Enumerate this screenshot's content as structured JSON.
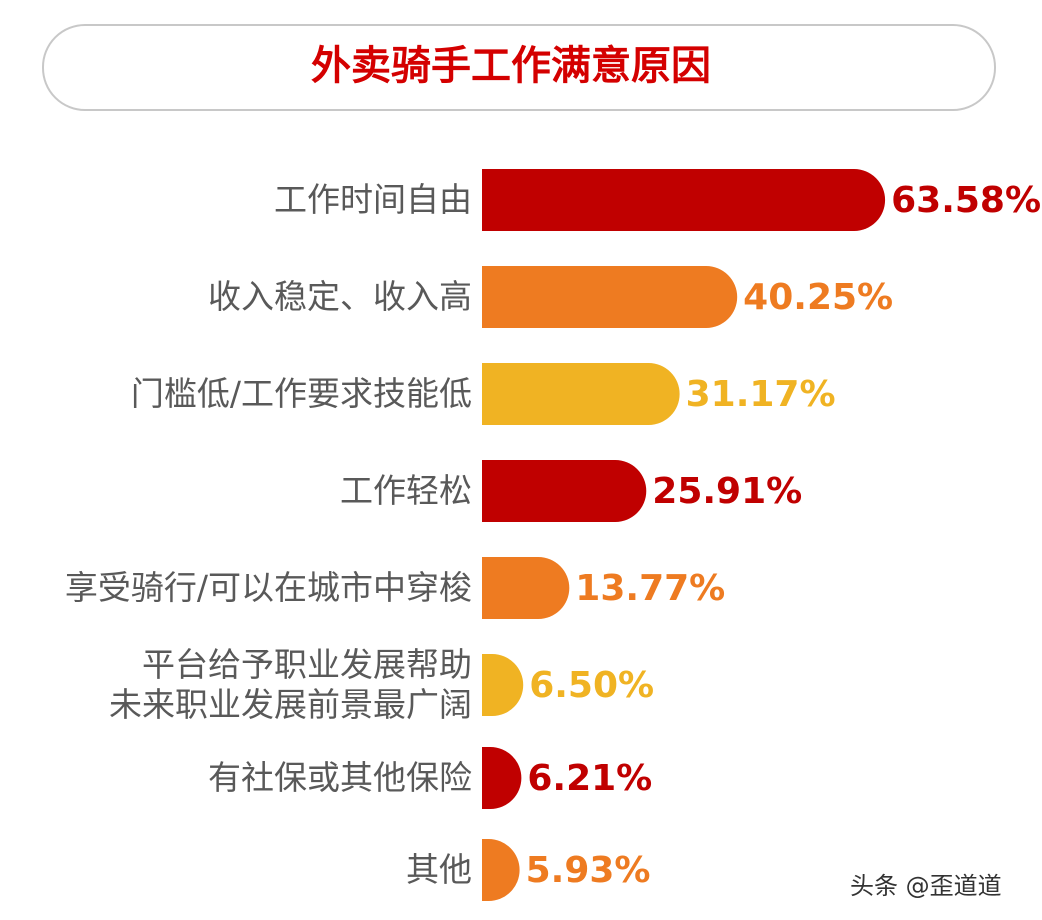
{
  "chart_data": {
    "type": "barh",
    "title": "外卖骑手工作满意原因",
    "categories": [
      "工作时间自由",
      "收入稳定、收入高",
      "门槛低/工作要求技能低",
      "工作轻松",
      "享受骑行/可以在城市中穿梭",
      "平台给予职业发展帮助\n未来职业发展前景最广阔",
      "有社保或其他保险",
      "其他"
    ],
    "values": [
      63.58,
      40.25,
      31.17,
      25.91,
      13.77,
      6.5,
      6.21,
      5.93
    ],
    "value_labels": [
      "63.58%",
      "40.25%",
      "31.17%",
      "25.91%",
      "13.77%",
      "6.50%",
      "6.21%",
      "5.93%"
    ],
    "colors": [
      "#c00000",
      "#ee7b21",
      "#f0b323",
      "#c00000",
      "#ee7b21",
      "#f0b323",
      "#c00000",
      "#ee7b21"
    ],
    "watermark": "头条 @歪道道"
  }
}
